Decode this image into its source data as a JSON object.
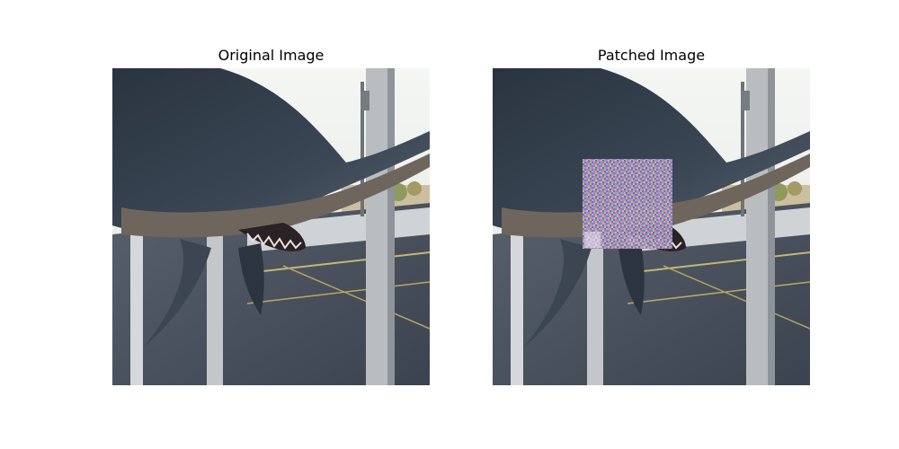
{
  "panels": [
    {
      "title": "Original Image",
      "patched": false
    },
    {
      "title": "Patched Image",
      "patched": true
    }
  ],
  "colors": {
    "background": "#ffffff",
    "sky": "#eef1ef",
    "shark_body": "#2f3a46",
    "shark_underside": "#6a6560",
    "window_frame": "#c9ccce",
    "pavement": "#3f4755",
    "patch_noise": "#9a7fb0"
  }
}
